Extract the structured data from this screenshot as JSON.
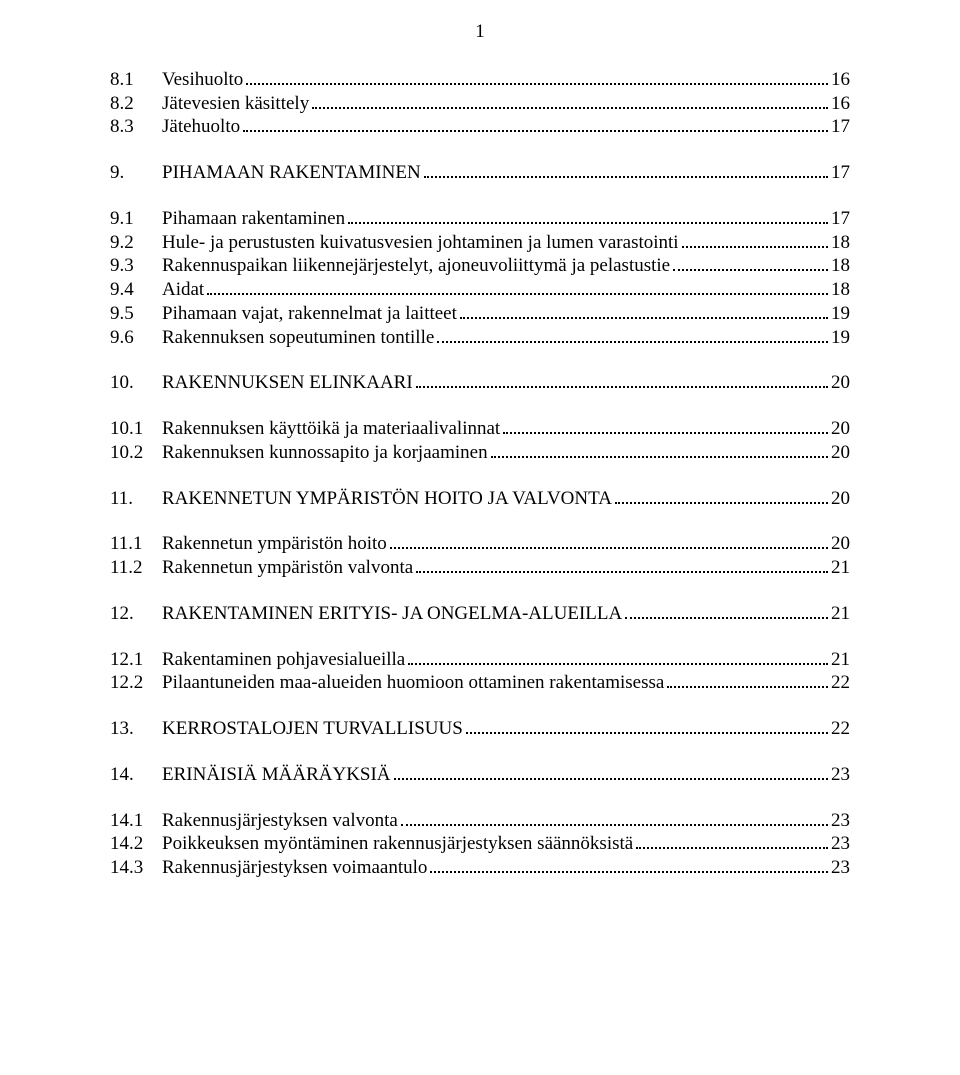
{
  "page_number": "1",
  "text_color": "#000000",
  "background_color": "#ffffff",
  "font_family": "Times New Roman",
  "font_size_pt": 14,
  "dot_leader_color": "#000000",
  "groups": [
    {
      "entries": [
        {
          "num": "8.1",
          "title": "Vesihuolto",
          "page": "16"
        },
        {
          "num": "8.2",
          "title": "Jätevesien käsittely",
          "page": "16"
        },
        {
          "num": "8.3",
          "title": "Jätehuolto",
          "page": "17"
        }
      ]
    },
    {
      "entries": [
        {
          "num": "9.",
          "title": "PIHAMAAN RAKENTAMINEN",
          "page": "17"
        }
      ]
    },
    {
      "entries": [
        {
          "num": "9.1",
          "title": "Pihamaan rakentaminen",
          "page": "17"
        },
        {
          "num": "9.2",
          "title": "Hule- ja perustusten kuivatusvesien johtaminen ja lumen varastointi",
          "page": "18"
        },
        {
          "num": "9.3",
          "title": "Rakennuspaikan liikennejärjestelyt, ajoneuvoliittymä ja pelastustie",
          "page": "18"
        },
        {
          "num": "9.4",
          "title": "Aidat",
          "page": "18"
        },
        {
          "num": "9.5",
          "title": "Pihamaan vajat, rakennelmat ja laitteet",
          "page": "19"
        },
        {
          "num": "9.6",
          "title": "Rakennuksen sopeutuminen tontille",
          "page": "19"
        }
      ]
    },
    {
      "entries": [
        {
          "num": "10.",
          "title": "RAKENNUKSEN ELINKAARI",
          "page": "20"
        }
      ]
    },
    {
      "entries": [
        {
          "num": "10.1",
          "title": "Rakennuksen käyttöikä ja materiaalivalinnat",
          "page": "20"
        },
        {
          "num": "10.2",
          "title": "Rakennuksen kunnossapito ja korjaaminen",
          "page": "20"
        }
      ]
    },
    {
      "entries": [
        {
          "num": "11.",
          "title": "RAKENNETUN YMPÄRISTÖN HOITO JA VALVONTA",
          "page": "20"
        }
      ]
    },
    {
      "entries": [
        {
          "num": "11.1",
          "title": "Rakennetun ympäristön hoito",
          "page": "20"
        },
        {
          "num": "11.2",
          "title": "Rakennetun ympäristön valvonta",
          "page": "21"
        }
      ]
    },
    {
      "entries": [
        {
          "num": "12.",
          "title": "RAKENTAMINEN ERITYIS- JA ONGELMA-ALUEILLA",
          "page": "21"
        }
      ]
    },
    {
      "entries": [
        {
          "num": "12.1",
          "title": "Rakentaminen pohjavesialueilla",
          "page": "21"
        },
        {
          "num": "12.2",
          "title": "Pilaantuneiden maa-alueiden huomioon ottaminen rakentamisessa",
          "page": "22"
        }
      ]
    },
    {
      "entries": [
        {
          "num": "13.",
          "title": "KERROSTALOJEN TURVALLISUUS",
          "page": "22"
        }
      ]
    },
    {
      "entries": [
        {
          "num": "14.",
          "title": "ERINÄISIÄ MÄÄRÄYKSIÄ",
          "page": "23"
        }
      ]
    },
    {
      "entries": [
        {
          "num": "14.1",
          "title": "Rakennusjärjestyksen valvonta",
          "page": "23"
        },
        {
          "num": "14.2",
          "title": "Poikkeuksen myöntäminen rakennusjärjestyksen säännöksistä",
          "page": "23"
        },
        {
          "num": "14.3",
          "title": "Rakennusjärjestyksen voimaantulo",
          "page": "23"
        }
      ]
    }
  ]
}
